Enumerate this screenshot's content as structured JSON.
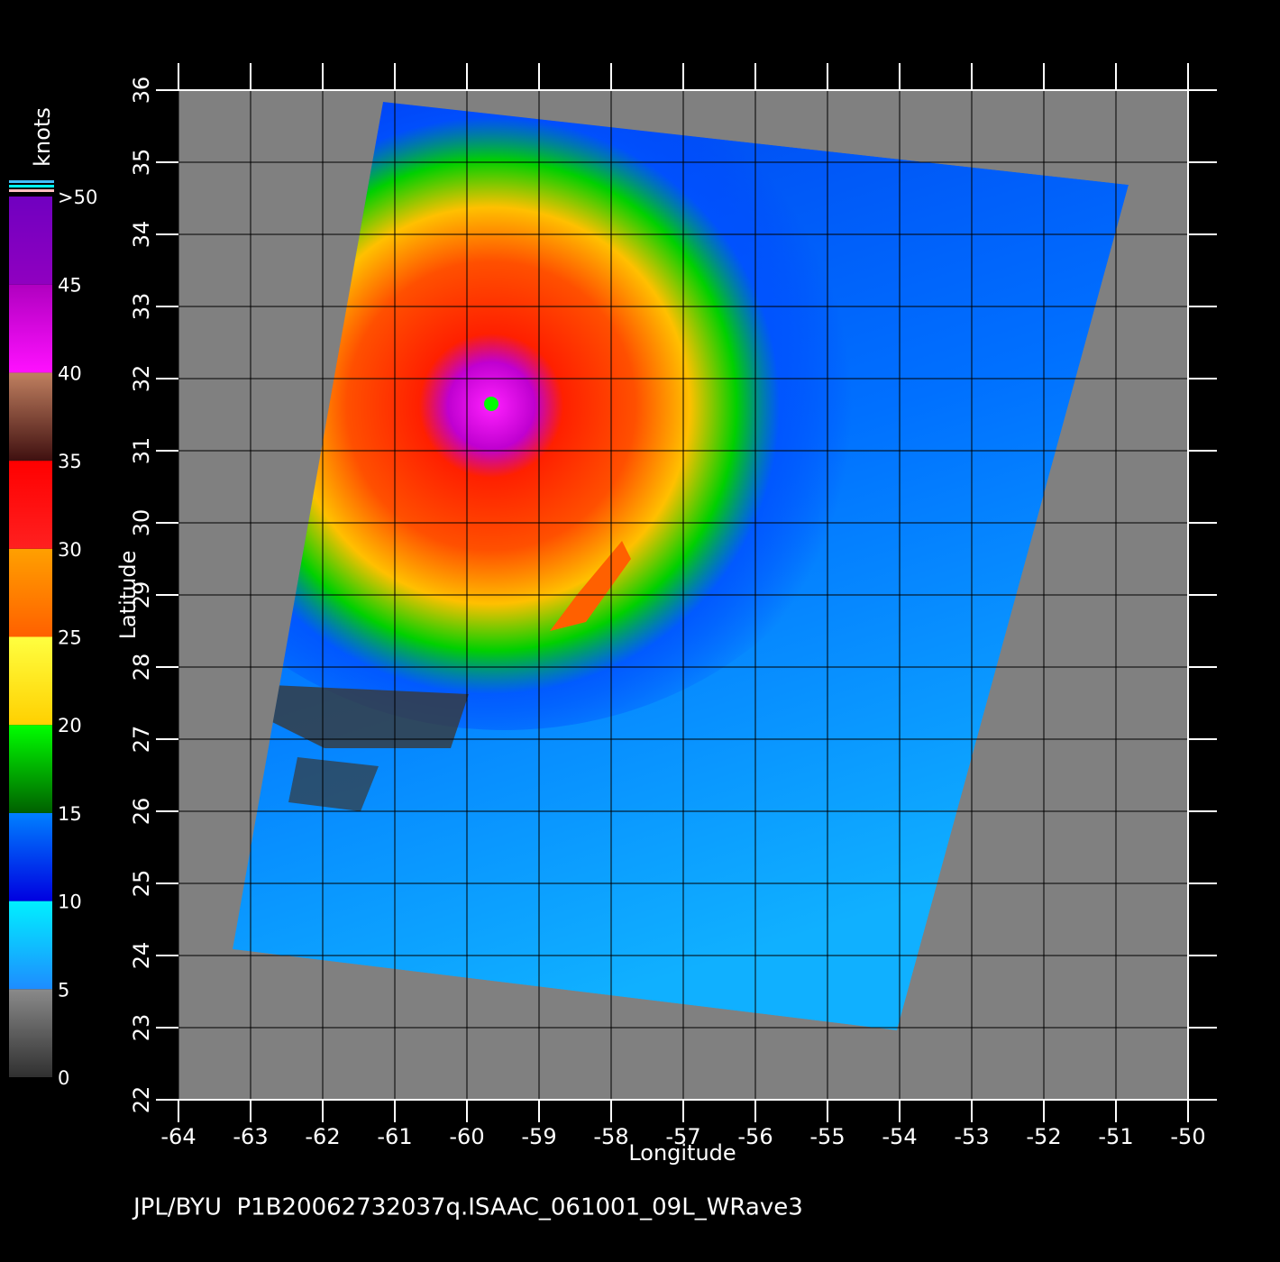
{
  "map": {
    "units": "knots",
    "colorbar": {
      "lim": [
        0,
        50
      ],
      "ticks": [
        0,
        5,
        10,
        15,
        20,
        25,
        30,
        35,
        40,
        45,
        {
          "value": 50,
          "label": ">50"
        }
      ],
      "bands": [
        [
          "#303030",
          "#8a8a8a"
        ],
        [
          "#1e8cff",
          "#00f0ff"
        ],
        [
          "#0000e0",
          "#0080ff"
        ],
        [
          "#006000",
          "#00ff00"
        ],
        [
          "#ffd000",
          "#ffff40"
        ],
        [
          "#ff6000",
          "#ffa000"
        ],
        [
          "#ff2020",
          "#ff0000"
        ],
        [
          "#401010",
          "#c08060"
        ],
        [
          "#ff10ff",
          "#b000c0"
        ],
        [
          "#9000c0",
          "#7000c0"
        ]
      ]
    },
    "xlabel": "Longitude",
    "ylabel": "Latitude",
    "xlim": [
      -64,
      -50
    ],
    "ylim": [
      22,
      36
    ],
    "xticks": [
      -64,
      -63,
      -62,
      -61,
      -60,
      -59,
      -58,
      -57,
      -56,
      -55,
      -54,
      -53,
      -52,
      -51,
      -50
    ],
    "yticks": [
      22,
      23,
      24,
      25,
      26,
      27,
      28,
      29,
      30,
      31,
      32,
      33,
      34,
      35,
      36
    ],
    "caption": "JPL/BYU  P1B20062732037q.ISAAC_061001_09L_WRave3"
  }
}
